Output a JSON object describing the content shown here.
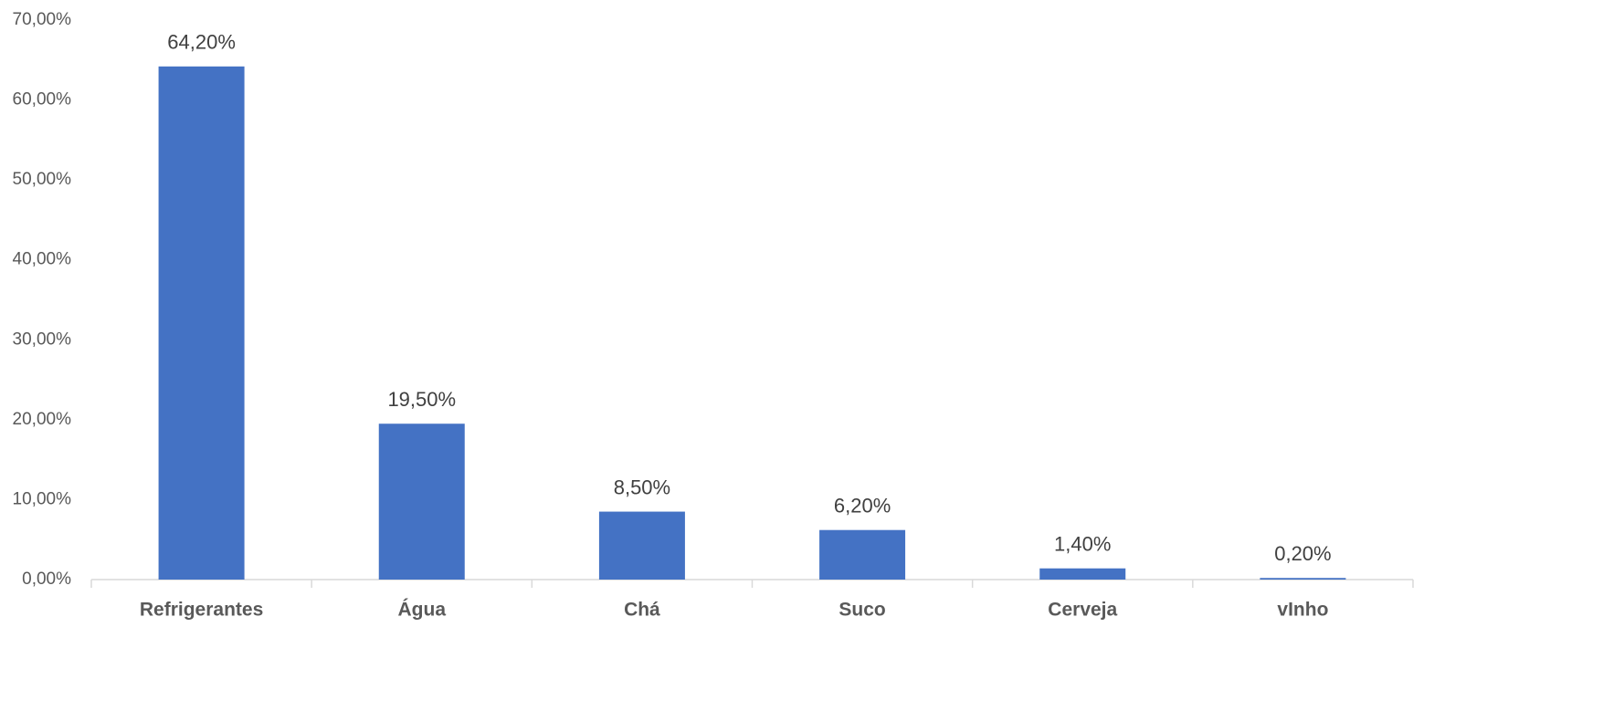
{
  "chart_data": {
    "type": "bar",
    "categories": [
      "Refrigerantes",
      "Água",
      "Chá",
      "Suco",
      "Cerveja",
      "vInho"
    ],
    "values": [
      64.2,
      19.5,
      8.5,
      6.2,
      1.4,
      0.2
    ],
    "value_labels": [
      "64,20%",
      "19,50%",
      "8,50%",
      "6,20%",
      "1,40%",
      "0,20%"
    ],
    "color": "#4472c4",
    "ylim": [
      0,
      70
    ],
    "yticks": [
      {
        "value": 0,
        "label": "0,00%"
      },
      {
        "value": 10,
        "label": "10,00%"
      },
      {
        "value": 20,
        "label": "20,00%"
      },
      {
        "value": 30,
        "label": "30,00%"
      },
      {
        "value": 40,
        "label": "40,00%"
      },
      {
        "value": 50,
        "label": "50,00%"
      },
      {
        "value": 60,
        "label": "60,00%"
      },
      {
        "value": 70,
        "label": "70,00%"
      }
    ],
    "grid": false
  }
}
